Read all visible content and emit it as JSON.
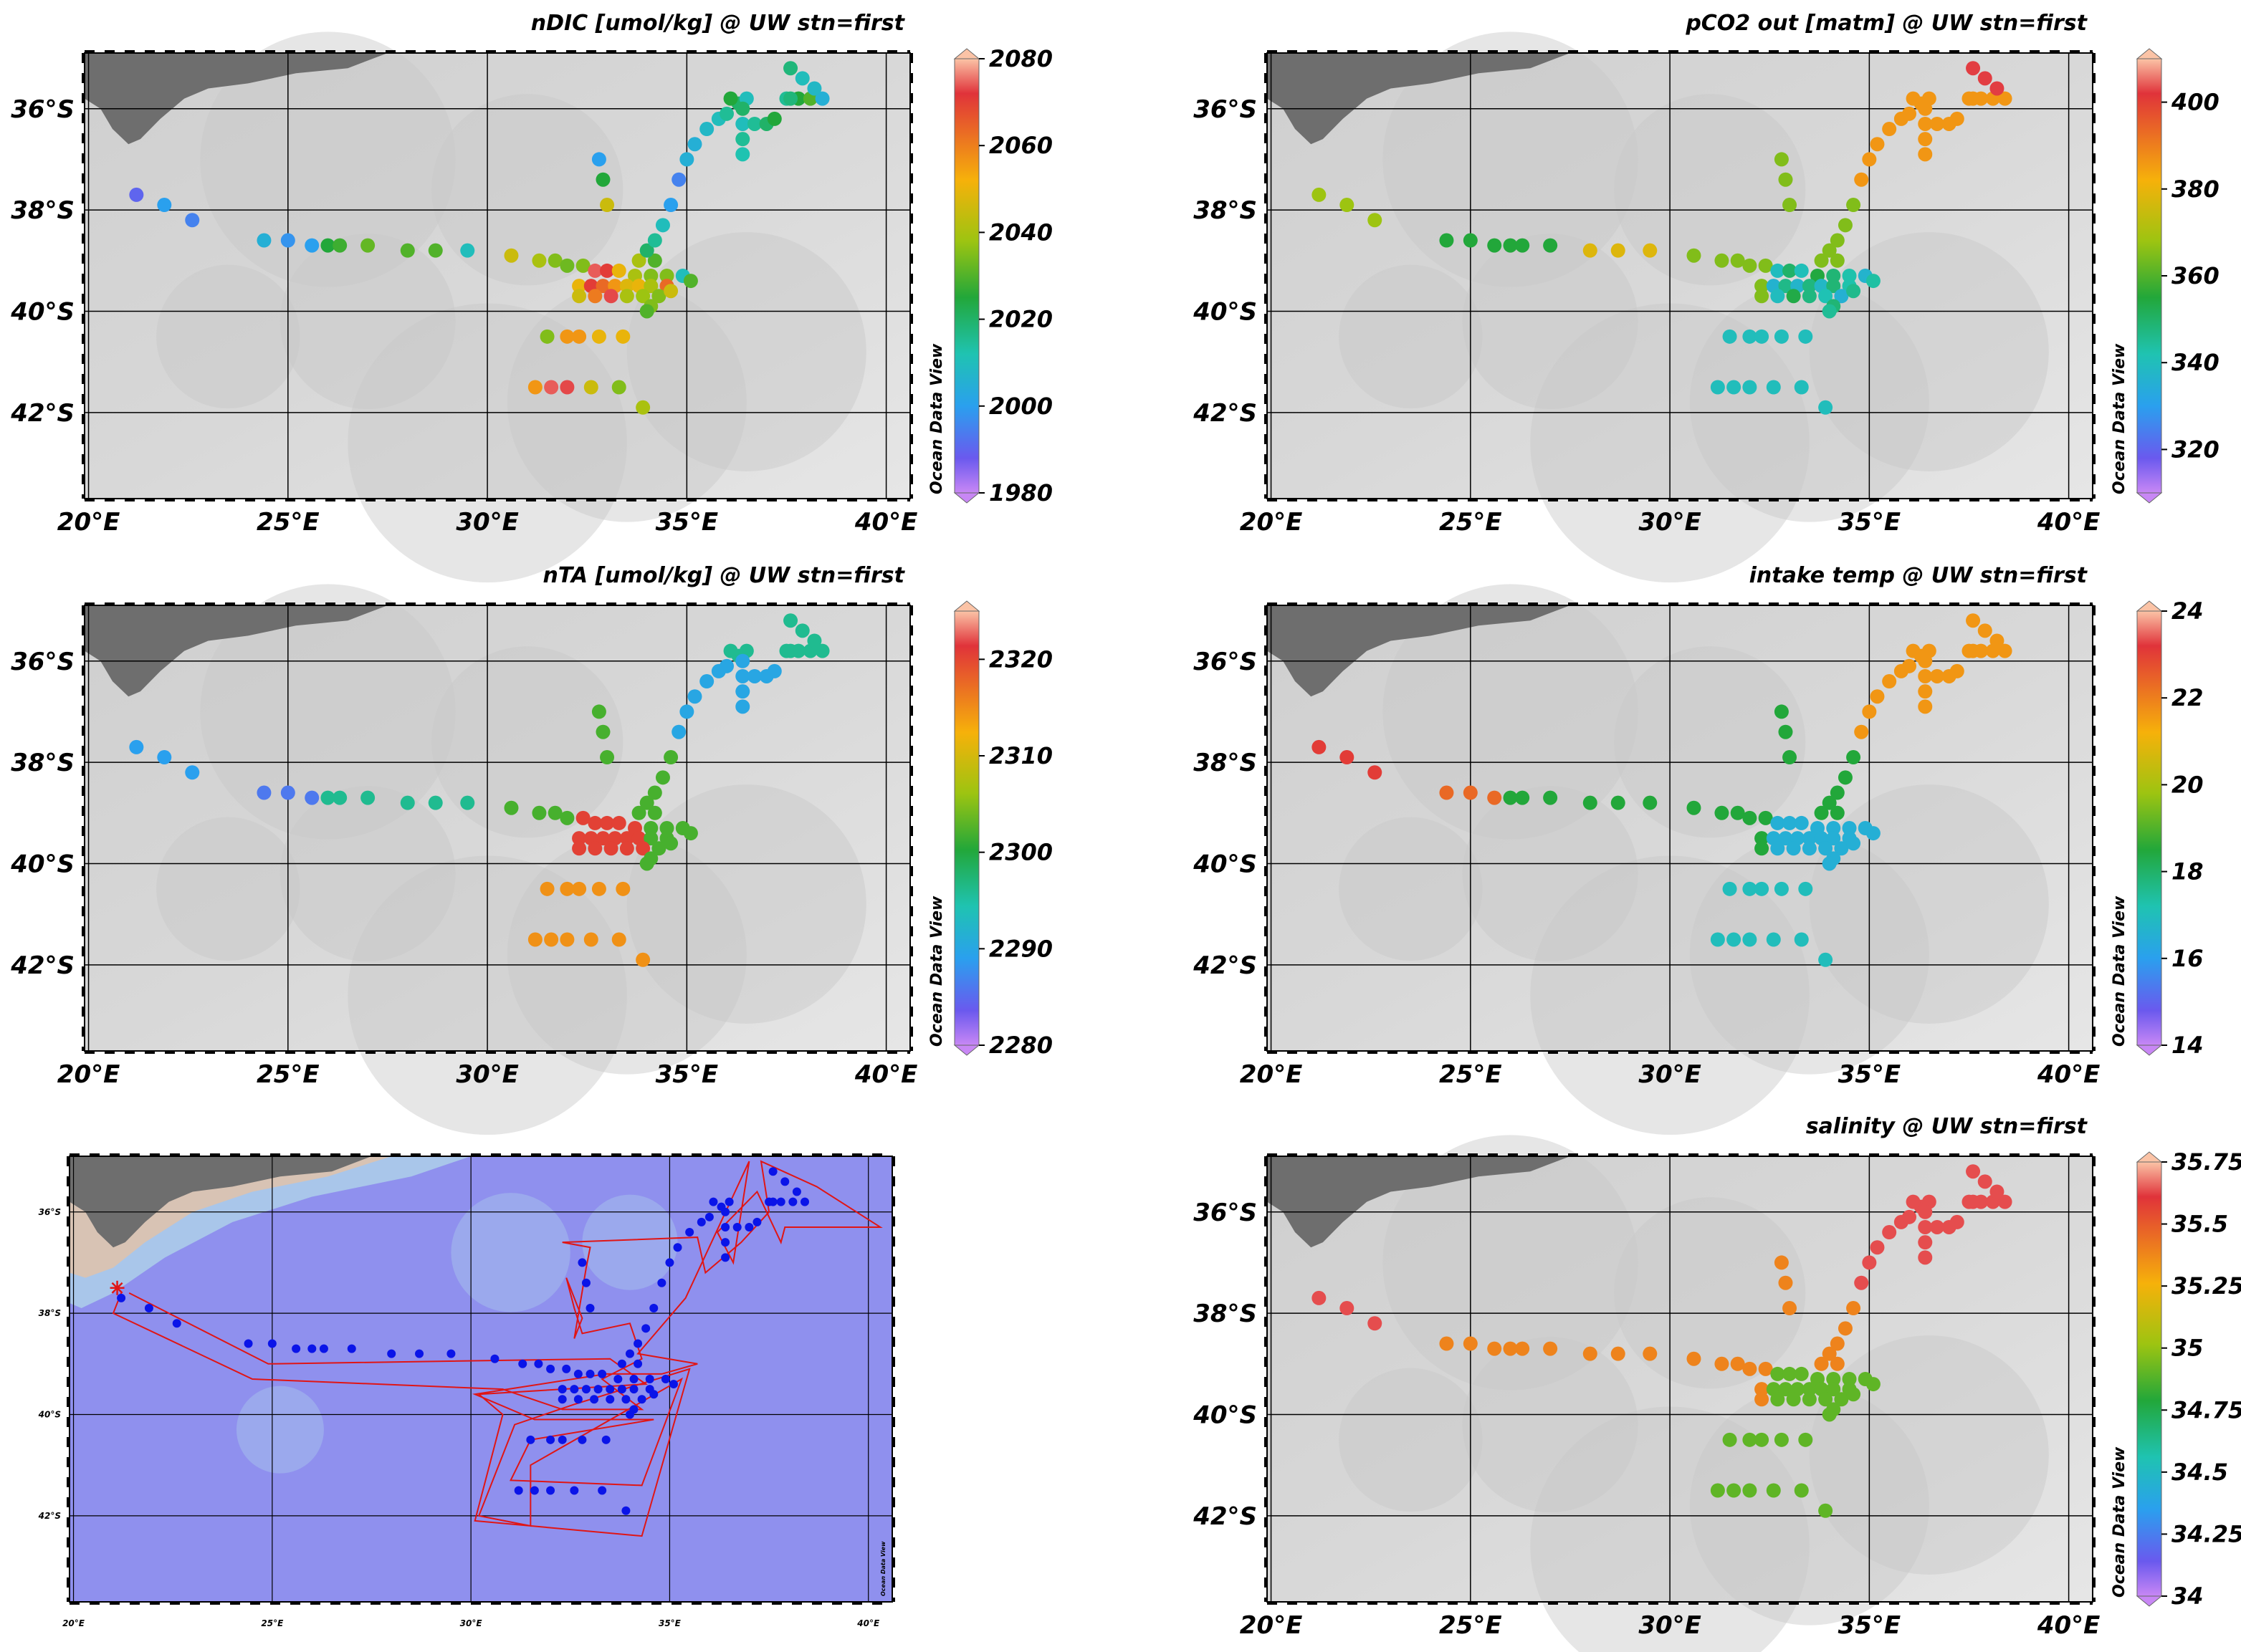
{
  "watermark": "Ocean Data View",
  "lon_ticks": [
    "20°E",
    "25°E",
    "30°E",
    "35°E",
    "40°E"
  ],
  "lat_ticks": [
    "36°S",
    "38°S",
    "40°S",
    "42°S"
  ],
  "map_extent": {
    "lon": [
      19.9,
      40.6
    ],
    "lat": [
      -34.9,
      -43.7
    ]
  },
  "colors": {
    "land": "#6e6e6e",
    "ocean_gray": "#d9d9d9",
    "ocean_blue": "#8f90ee",
    "track": "#e01515",
    "station": "#0a14e8",
    "frame": "#000000"
  },
  "panels": [
    {
      "id": "ndic",
      "title": "nDIC [umol/kg] @ UW stn=first",
      "cbar_ticks": [
        "2080",
        "2060",
        "2040",
        "2020",
        "2000",
        "1980"
      ],
      "range": [
        1980,
        2080
      ]
    },
    {
      "id": "pco2",
      "title": "pCO2 out [matm] @ UW stn=first",
      "cbar_ticks": [
        "400",
        "380",
        "360",
        "340",
        "320"
      ],
      "range": [
        310,
        410
      ]
    },
    {
      "id": "nta",
      "title": "nTA [umol/kg] @ UW stn=first",
      "cbar_ticks": [
        "2320",
        "2310",
        "2300",
        "2290",
        "2280"
      ],
      "range": [
        2280,
        2325
      ]
    },
    {
      "id": "temp",
      "title": "intake temp @ UW stn=first",
      "cbar_ticks": [
        "24",
        "22",
        "20",
        "18",
        "16",
        "14"
      ],
      "range": [
        14,
        24
      ]
    },
    {
      "id": "sal",
      "title": "salinity @ UW stn=first",
      "cbar_ticks": [
        "35.75",
        "35.5",
        "35.25",
        "35",
        "34.75",
        "34.5",
        "34.25",
        "34"
      ],
      "range": [
        34,
        35.75
      ]
    }
  ],
  "chart_data": [
    {
      "type": "scatter",
      "title": "nDIC [umol/kg] @ UW stn=first",
      "x_label": "",
      "y_label": "",
      "xlim": [
        19.9,
        40.6
      ],
      "ylim": [
        -43.7,
        -34.9
      ],
      "points": [
        {
          "lon": 21.2,
          "lat": -37.7,
          "value": 1990
        },
        {
          "lon": 21.9,
          "lat": -37.9,
          "value": 2000
        },
        {
          "lon": 22.6,
          "lat": -38.2,
          "value": 1995
        },
        {
          "lon": 24.4,
          "lat": -38.6,
          "value": 2005
        },
        {
          "lon": 25.0,
          "lat": -38.6,
          "value": 1998
        },
        {
          "lon": 25.6,
          "lat": -38.7,
          "value": 2000
        },
        {
          "lon": 26.0,
          "lat": -38.7,
          "value": 2025
        },
        {
          "lon": 26.3,
          "lat": -38.7,
          "value": 2028
        },
        {
          "lon": 27.0,
          "lat": -38.7,
          "value": 2032
        },
        {
          "lon": 28.0,
          "lat": -38.8,
          "value": 2030
        },
        {
          "lon": 28.7,
          "lat": -38.8,
          "value": 2030
        },
        {
          "lon": 29.5,
          "lat": -38.8,
          "value": 2010
        },
        {
          "lon": 30.6,
          "lat": -38.9,
          "value": 2045
        },
        {
          "lon": 31.3,
          "lat": -39.0,
          "value": 2040
        },
        {
          "lon": 31.7,
          "lat": -39.0,
          "value": 2035
        },
        {
          "lon": 32.0,
          "lat": -39.1,
          "value": 2033
        },
        {
          "lon": 32.4,
          "lat": -39.1,
          "value": 2035
        },
        {
          "lon": 32.7,
          "lat": -39.2,
          "value": 2070
        },
        {
          "lon": 33.0,
          "lat": -39.2,
          "value": 2065
        },
        {
          "lon": 33.3,
          "lat": -39.2,
          "value": 2050
        },
        {
          "lon": 33.7,
          "lat": -39.3,
          "value": 2040
        },
        {
          "lon": 34.1,
          "lat": -39.3,
          "value": 2035
        },
        {
          "lon": 34.5,
          "lat": -39.3,
          "value": 2035
        },
        {
          "lon": 32.3,
          "lat": -39.5,
          "value": 2050
        },
        {
          "lon": 32.6,
          "lat": -39.5,
          "value": 2065
        },
        {
          "lon": 32.9,
          "lat": -39.5,
          "value": 2060
        },
        {
          "lon": 33.2,
          "lat": -39.5,
          "value": 2055
        },
        {
          "lon": 33.5,
          "lat": -39.5,
          "value": 2048
        },
        {
          "lon": 33.8,
          "lat": -39.5,
          "value": 2050
        },
        {
          "lon": 34.1,
          "lat": -39.5,
          "value": 2040
        },
        {
          "lon": 34.5,
          "lat": -39.5,
          "value": 2060
        },
        {
          "lon": 32.3,
          "lat": -39.7,
          "value": 2045
        },
        {
          "lon": 32.7,
          "lat": -39.7,
          "value": 2058
        },
        {
          "lon": 33.1,
          "lat": -39.7,
          "value": 2068
        },
        {
          "lon": 33.5,
          "lat": -39.7,
          "value": 2040
        },
        {
          "lon": 33.9,
          "lat": -39.7,
          "value": 2038
        },
        {
          "lon": 34.3,
          "lat": -39.7,
          "value": 2035
        },
        {
          "lon": 34.6,
          "lat": -39.6,
          "value": 2045
        },
        {
          "lon": 34.1,
          "lat": -39.9,
          "value": 2035
        },
        {
          "lon": 34.0,
          "lat": -40.0,
          "value": 2030
        },
        {
          "lon": 34.9,
          "lat": -39.3,
          "value": 2010
        },
        {
          "lon": 35.1,
          "lat": -39.4,
          "value": 2030
        },
        {
          "lon": 33.8,
          "lat": -39.0,
          "value": 2040
        },
        {
          "lon": 34.2,
          "lat": -39.0,
          "value": 2030
        },
        {
          "lon": 34.0,
          "lat": -38.8,
          "value": 2020
        },
        {
          "lon": 34.2,
          "lat": -38.6,
          "value": 2015
        },
        {
          "lon": 34.4,
          "lat": -38.3,
          "value": 2010
        },
        {
          "lon": 34.6,
          "lat": -37.9,
          "value": 2000
        },
        {
          "lon": 34.8,
          "lat": -37.4,
          "value": 1995
        },
        {
          "lon": 35.0,
          "lat": -37.0,
          "value": 2005
        },
        {
          "lon": 35.2,
          "lat": -36.7,
          "value": 2005
        },
        {
          "lon": 35.5,
          "lat": -36.4,
          "value": 2008
        },
        {
          "lon": 35.8,
          "lat": -36.2,
          "value": 2010
        },
        {
          "lon": 36.0,
          "lat": -36.1,
          "value": 2015
        },
        {
          "lon": 36.3,
          "lat": -35.9,
          "value": 2020
        },
        {
          "lon": 36.5,
          "lat": -35.8,
          "value": 2010
        },
        {
          "lon": 36.1,
          "lat": -35.8,
          "value": 2025
        },
        {
          "lon": 36.4,
          "lat": -36.0,
          "value": 2020
        },
        {
          "lon": 36.4,
          "lat": -36.3,
          "value": 2010
        },
        {
          "lon": 36.4,
          "lat": -36.6,
          "value": 2015
        },
        {
          "lon": 36.4,
          "lat": -36.9,
          "value": 2012
        },
        {
          "lon": 36.7,
          "lat": -36.3,
          "value": 2015
        },
        {
          "lon": 37.0,
          "lat": -36.3,
          "value": 2020
        },
        {
          "lon": 37.2,
          "lat": -36.2,
          "value": 2025
        },
        {
          "lon": 37.5,
          "lat": -35.8,
          "value": 2015
        },
        {
          "lon": 37.8,
          "lat": -35.8,
          "value": 2025
        },
        {
          "lon": 38.1,
          "lat": -35.8,
          "value": 2030
        },
        {
          "lon": 38.4,
          "lat": -35.8,
          "value": 2005
        },
        {
          "lon": 37.6,
          "lat": -35.2,
          "value": 2018
        },
        {
          "lon": 37.9,
          "lat": -35.4,
          "value": 2010
        },
        {
          "lon": 38.2,
          "lat": -35.6,
          "value": 2008
        },
        {
          "lon": 37.6,
          "lat": -35.8,
          "value": 2018
        },
        {
          "lon": 32.8,
          "lat": -37.0,
          "value": 2000
        },
        {
          "lon": 32.9,
          "lat": -37.4,
          "value": 2025
        },
        {
          "lon": 33.0,
          "lat": -37.9,
          "value": 2045
        },
        {
          "lon": 31.5,
          "lat": -40.5,
          "value": 2035
        },
        {
          "lon": 32.0,
          "lat": -40.5,
          "value": 2055
        },
        {
          "lon": 32.3,
          "lat": -40.5,
          "value": 2055
        },
        {
          "lon": 32.8,
          "lat": -40.5,
          "value": 2050
        },
        {
          "lon": 33.4,
          "lat": -40.5,
          "value": 2050
        },
        {
          "lon": 31.2,
          "lat": -41.5,
          "value": 2055
        },
        {
          "lon": 31.6,
          "lat": -41.5,
          "value": 2070
        },
        {
          "lon": 32.0,
          "lat": -41.5,
          "value": 2068
        },
        {
          "lon": 32.6,
          "lat": -41.5,
          "value": 2045
        },
        {
          "lon": 33.3,
          "lat": -41.5,
          "value": 2035
        },
        {
          "lon": 33.9,
          "lat": -41.9,
          "value": 2040
        }
      ]
    }
  ]
}
